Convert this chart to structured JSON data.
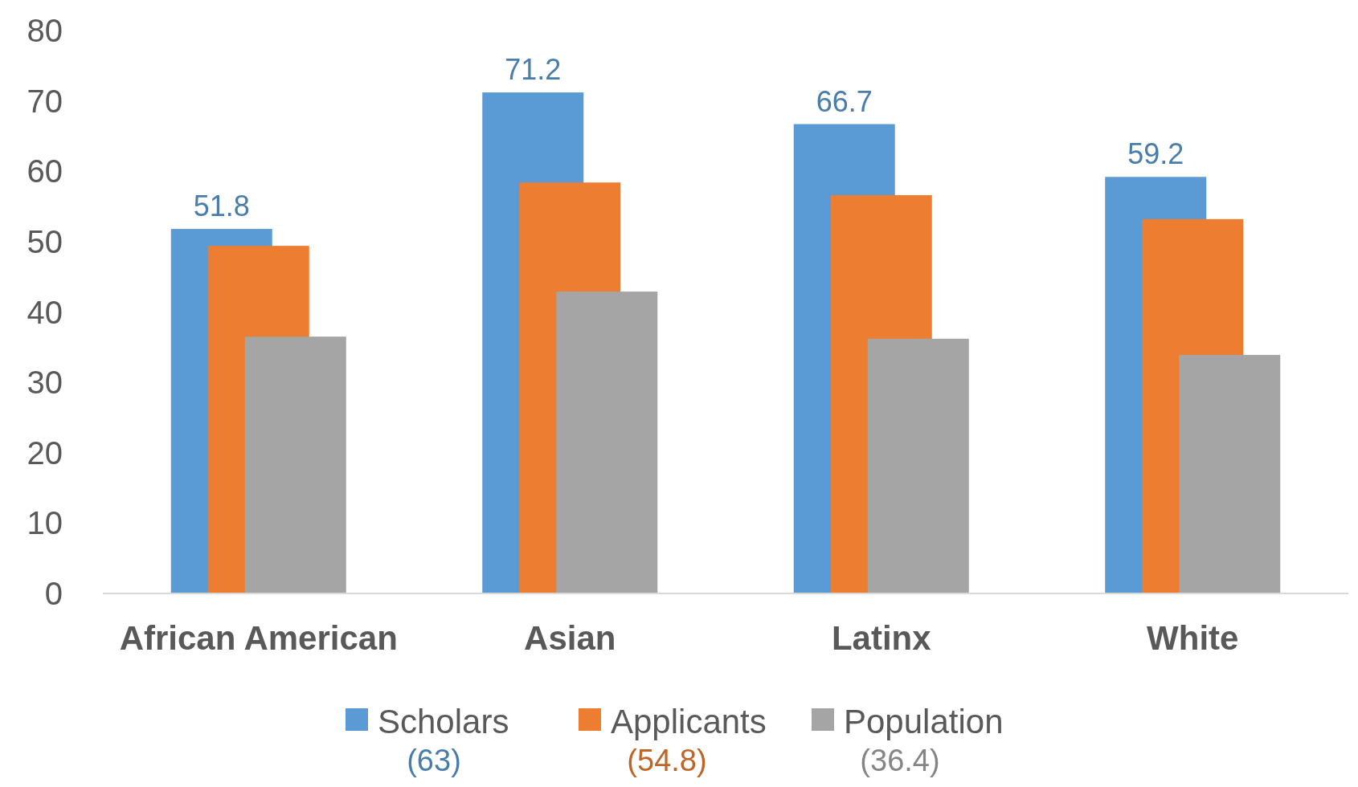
{
  "chart_data": {
    "type": "bar",
    "categories": [
      "African American",
      "Asian",
      "Latinx",
      "White"
    ],
    "series": [
      {
        "name": "Scholars",
        "color": "#5b9bd5",
        "values": [
          51.8,
          71.2,
          66.7,
          59.2
        ],
        "value_labels": [
          "51.8",
          "71.2",
          "66.7",
          "59.2"
        ]
      },
      {
        "name": "Applicants",
        "color": "#ed7d31",
        "values": [
          49.4,
          58.4,
          56.6,
          53.2
        ]
      },
      {
        "name": "Population",
        "color": "#a5a5a5",
        "values": [
          36.5,
          42.9,
          36.2,
          33.9
        ]
      }
    ],
    "ylim": [
      0,
      80
    ],
    "yticks": [
      0,
      10,
      20,
      30,
      40,
      50,
      60,
      70,
      80
    ],
    "grid": false,
    "legend": "bottom",
    "annotations": [
      "(63)",
      "(54.8)",
      "(36.4)"
    ]
  }
}
